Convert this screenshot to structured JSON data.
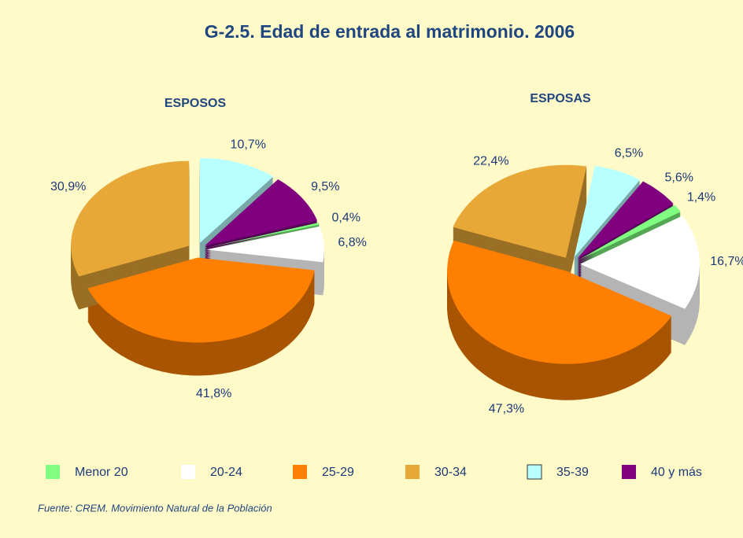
{
  "title": "G-2.5. Edad de entrada al matrimonio. 2006",
  "source": "Fuente: CREM. Movimiento Natural de la Población",
  "chart_data": [
    {
      "type": "pie",
      "title": "ESPOSOS",
      "categories": [
        "Menor 20",
        "20-24",
        "25-29",
        "30-34",
        "35-39",
        "40 y más"
      ],
      "values": [
        0.4,
        6.8,
        41.8,
        30.9,
        10.7,
        9.5
      ],
      "value_labels": [
        "0,4%",
        "6,8%",
        "41,8%",
        "30,9%",
        "10,7%",
        "9,5%"
      ],
      "colors": [
        "#80ff80",
        "#ffffff",
        "#ff8000",
        "#e8a838",
        "#b8ffff",
        "#800080"
      ]
    },
    {
      "type": "pie",
      "title": "ESPOSAS",
      "categories": [
        "Menor 20",
        "20-24",
        "25-29",
        "30-34",
        "35-39",
        "40 y más"
      ],
      "values": [
        1.4,
        16.7,
        47.3,
        22.4,
        6.5,
        5.6
      ],
      "value_labels": [
        "1,4%",
        "16,7%",
        "47,3%",
        "22,4%",
        "6,5%",
        "5,6%"
      ],
      "colors": [
        "#80ff80",
        "#ffffff",
        "#ff8000",
        "#e8a838",
        "#b8ffff",
        "#800080"
      ]
    }
  ]
}
